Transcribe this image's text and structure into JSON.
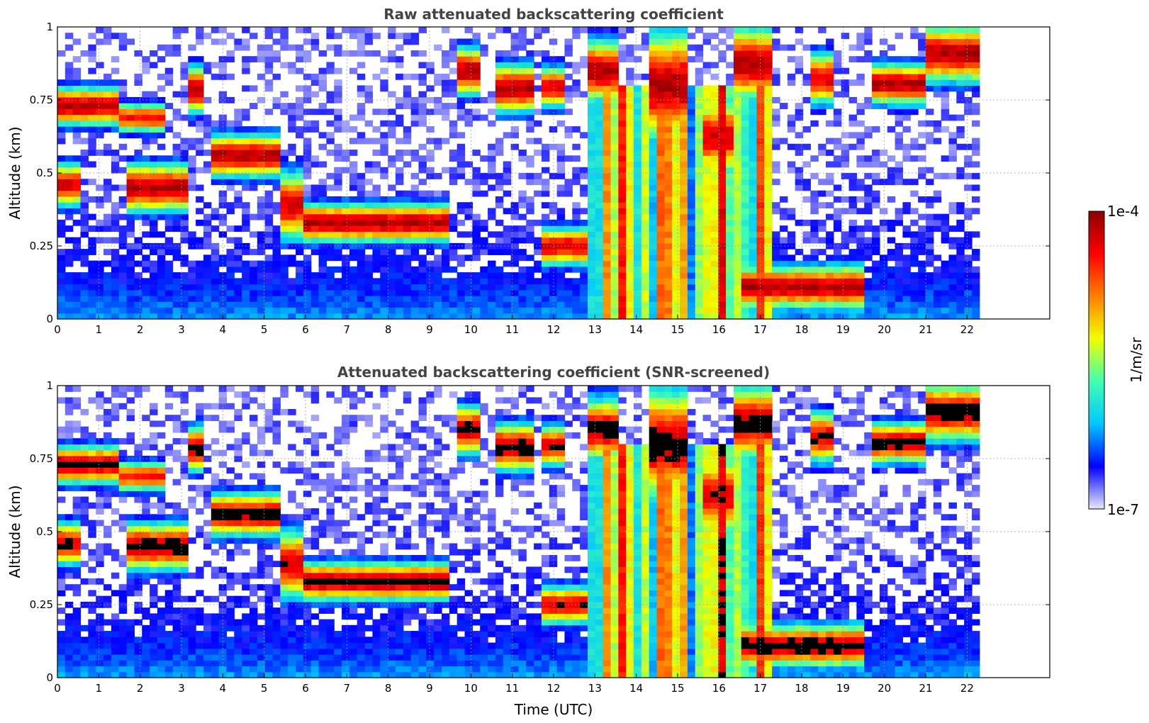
{
  "chart_data": [
    {
      "type": "heatmap",
      "title": "Raw attenuated backscattering coefficient",
      "xlabel": "",
      "ylabel": "Altitude (km)",
      "xlim": [
        0,
        24
      ],
      "ylim": [
        0,
        1
      ],
      "xticks": [
        "0",
        "1",
        "2",
        "3",
        "4",
        "5",
        "6",
        "7",
        "8",
        "9",
        "10",
        "11",
        "12",
        "13",
        "14",
        "15",
        "16",
        "17",
        "18",
        "19",
        "20",
        "21",
        "22"
      ],
      "yticks": [
        "0",
        "0.25",
        "0.5",
        "0.75",
        "1"
      ],
      "data_end_hour": 22.3,
      "grid": true,
      "screened": false,
      "layers": [
        {
          "t": [
            0.0,
            1.5
          ],
          "z": [
            0.68,
            0.78
          ],
          "level": 0.95
        },
        {
          "t": [
            1.5,
            2.6
          ],
          "z": [
            0.66,
            0.72
          ],
          "level": 0.85
        },
        {
          "t": [
            0.0,
            0.5
          ],
          "z": [
            0.4,
            0.52
          ],
          "level": 0.9
        },
        {
          "t": [
            1.7,
            3.2
          ],
          "z": [
            0.38,
            0.52
          ],
          "level": 0.95
        },
        {
          "t": [
            3.1,
            3.6
          ],
          "z": [
            0.72,
            0.85
          ],
          "level": 0.95
        },
        {
          "t": [
            3.8,
            5.4
          ],
          "z": [
            0.5,
            0.62
          ],
          "level": 0.95
        },
        {
          "t": [
            5.3,
            6.0
          ],
          "z": [
            0.28,
            0.5
          ],
          "level": 0.9
        },
        {
          "t": [
            6.0,
            9.5
          ],
          "z": [
            0.28,
            0.38
          ],
          "level": 0.95
        },
        {
          "t": [
            9.6,
            10.3
          ],
          "z": [
            0.78,
            0.92
          ],
          "level": 0.95
        },
        {
          "t": [
            10.6,
            11.6
          ],
          "z": [
            0.72,
            0.86
          ],
          "level": 0.95
        },
        {
          "t": [
            11.8,
            12.3
          ],
          "z": [
            0.74,
            0.85
          ],
          "level": 0.9
        },
        {
          "t": [
            11.7,
            12.8
          ],
          "z": [
            0.2,
            0.3
          ],
          "level": 0.9
        },
        {
          "t": [
            12.8,
            13.6
          ],
          "z": [
            0.75,
            0.95
          ],
          "level": 0.95
        },
        {
          "t": [
            14.4,
            15.3
          ],
          "z": [
            0.6,
            1.0
          ],
          "level": 0.95
        },
        {
          "t": [
            15.6,
            16.4
          ],
          "z": [
            0.5,
            0.75
          ],
          "level": 0.9
        },
        {
          "t": [
            16.4,
            17.2
          ],
          "z": [
            0.75,
            1.0
          ],
          "level": 0.95
        },
        {
          "t": [
            16.6,
            19.6
          ],
          "z": [
            0.05,
            0.17
          ],
          "level": 0.95
        },
        {
          "t": [
            18.3,
            18.8
          ],
          "z": [
            0.75,
            0.9
          ],
          "level": 0.9
        },
        {
          "t": [
            19.7,
            21.0
          ],
          "z": [
            0.75,
            0.86
          ],
          "level": 0.95
        },
        {
          "t": [
            21.0,
            22.3
          ],
          "z": [
            0.82,
            1.0
          ],
          "level": 0.95
        }
      ]
    },
    {
      "type": "heatmap",
      "title": "Attenuated backscattering coefficient (SNR-screened)",
      "xlabel": "Time (UTC)",
      "ylabel": "Altitude (km)",
      "xlim": [
        0,
        24
      ],
      "ylim": [
        0,
        1
      ],
      "xticks": [
        "0",
        "1",
        "2",
        "3",
        "4",
        "5",
        "6",
        "7",
        "8",
        "9",
        "10",
        "11",
        "12",
        "13",
        "14",
        "15",
        "16",
        "17",
        "18",
        "19",
        "20",
        "21",
        "22"
      ],
      "yticks": [
        "0",
        "0.25",
        "0.5",
        "0.75",
        "1"
      ],
      "data_end_hour": 22.3,
      "grid": true,
      "screened": true
    }
  ],
  "colorbar": {
    "label": "1/m/sr",
    "max_label": "1e-4",
    "min_label": "1e-7",
    "colormap": [
      "#e8e8f8",
      "#0000ff",
      "#00c8ff",
      "#40ffb0",
      "#f0ff00",
      "#ff8000",
      "#ff0000",
      "#8b0000"
    ]
  }
}
